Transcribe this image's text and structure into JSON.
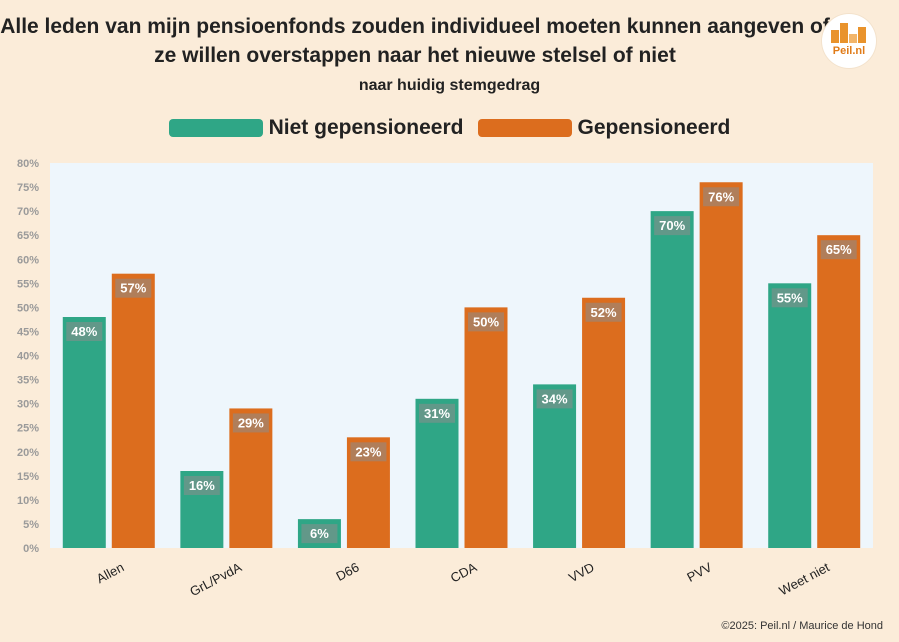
{
  "logo": {
    "text": "Peil.nl"
  },
  "footer": {
    "copyright": "©2025: Peil.nl / Maurice de Hond"
  },
  "chart_data": {
    "type": "bar",
    "title": "Alle leden van mijn pensioenfonds zouden individueel moeten kunnen aangeven of ze willen overstappen naar het nieuwe stelsel of niet",
    "subtitle": "naar huidig stemgedrag",
    "categories": [
      "Allen",
      "GrL/PvdA",
      "D66",
      "CDA",
      "VVD",
      "PVV",
      "Weet niet"
    ],
    "series": [
      {
        "name": "Niet gepensioneerd",
        "color": "#2fa686",
        "values": [
          48,
          16,
          6,
          31,
          34,
          70,
          55
        ]
      },
      {
        "name": "Gepensioneerd",
        "color": "#dc6d1e",
        "values": [
          57,
          29,
          23,
          50,
          52,
          76,
          65
        ]
      }
    ],
    "ylim": [
      0,
      80
    ],
    "yticks": [
      0,
      5,
      10,
      15,
      20,
      25,
      30,
      35,
      40,
      45,
      50,
      55,
      60,
      65,
      70,
      75,
      80
    ],
    "tick_suffix": "%",
    "grid": false,
    "legend_position": "top",
    "plot_background": "#eef6fc"
  }
}
